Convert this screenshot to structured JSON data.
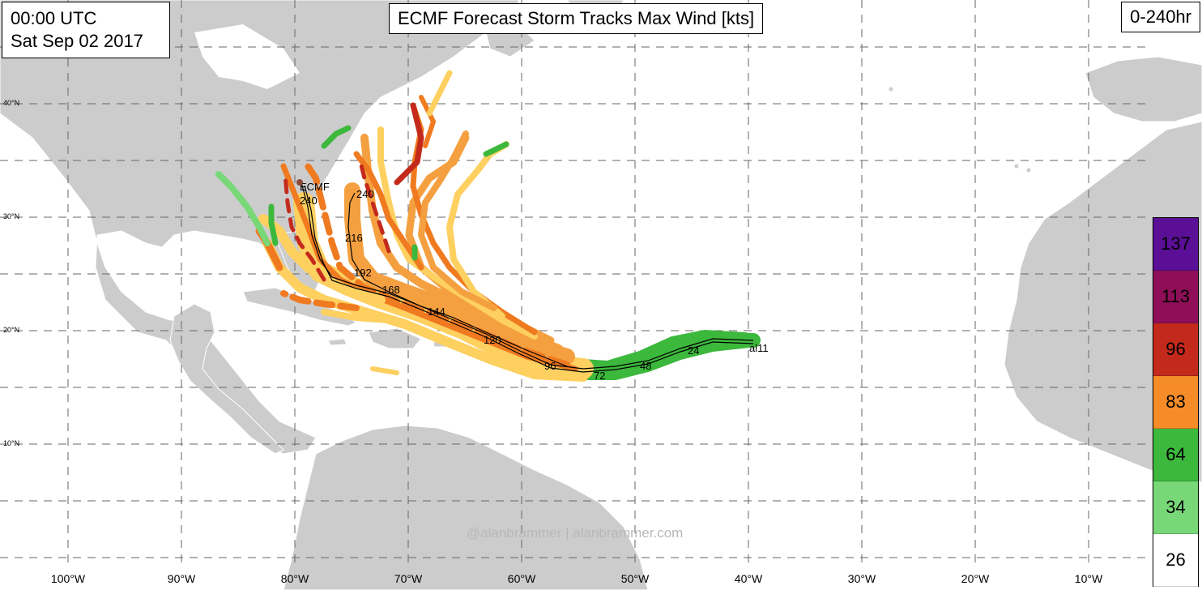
{
  "header": {
    "time_line1": "00:00 UTC",
    "time_line2": "Sat Sep 02 2017",
    "title": "ECMF Forecast Storm Tracks Max Wind [kts]",
    "range": "0-240hr"
  },
  "credit": "@alanbrammer | alanbrammer.com",
  "axes": {
    "longitude_labels": [
      "100°W",
      "90°W",
      "80°W",
      "70°W",
      "60°W",
      "50°W",
      "40°W",
      "30°W",
      "20°W",
      "10°W"
    ],
    "latitude_labels": [
      "40°N",
      "30°N",
      "20°N",
      "10°N"
    ]
  },
  "wind_scale": {
    "entries": [
      {
        "label": "137",
        "color": "#5b0f96"
      },
      {
        "label": "113",
        "color": "#8e0f57"
      },
      {
        "label": "96",
        "color": "#c42a1c"
      },
      {
        "label": "83",
        "color": "#f58c28"
      },
      {
        "label": "64",
        "color": "#3cb83c"
      },
      {
        "label": "34",
        "color": "#78d878"
      },
      {
        "label": "26",
        "color": "#ffffff"
      }
    ]
  },
  "track_labels": {
    "storm_id": "al11",
    "model": "ECMF",
    "hours_main": [
      "24",
      "48",
      "72",
      "96",
      "120",
      "144",
      "168",
      "192",
      "216",
      "240"
    ],
    "hours_alt": "240",
    "hours_main_end": "240"
  },
  "colors": {
    "land": "#cccccc",
    "ocean": "#ffffff",
    "grid": "#666666",
    "light_orange": "#fdd060",
    "orange": "#f5a040",
    "dark_orange": "#f07a20",
    "red": "#c42a1c",
    "green": "#3cb83c",
    "light_green": "#78d878"
  }
}
